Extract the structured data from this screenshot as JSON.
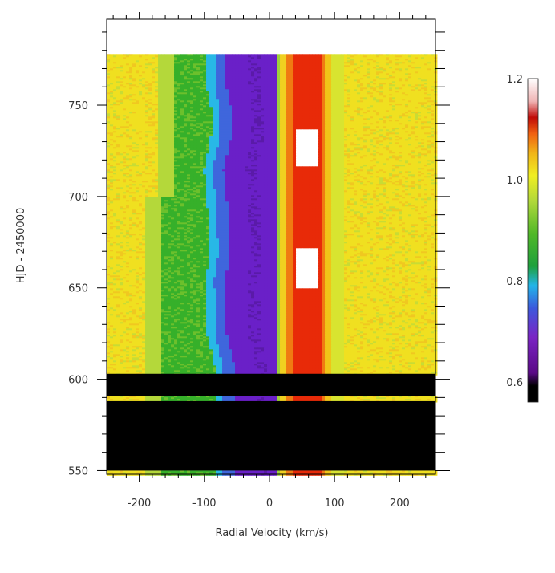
{
  "chart_data": {
    "type": "heatmap",
    "xlabel": "Radial Velocity (km/s)",
    "ylabel": "HJD - 2450000",
    "xlim": [
      -250,
      255
    ],
    "ylim": [
      548,
      797
    ],
    "xticks": [
      -200,
      -100,
      0,
      100,
      200
    ],
    "xtick_labels": [
      "-200",
      "-100",
      "0",
      "100",
      "200"
    ],
    "yticks": [
      550,
      600,
      650,
      700,
      750
    ],
    "ytick_labels": [
      "550",
      "600",
      "650",
      "700",
      "750"
    ],
    "colorbar": {
      "range": [
        0.56,
        1.2
      ],
      "ticks": [
        0.6,
        0.8,
        1.0,
        1.2
      ],
      "tick_labels": [
        "0.6",
        "0.8",
        "1.0",
        "1.2"
      ]
    },
    "no_data_gaps_hjd": [
      [
        778,
        794
      ],
      [
        603,
        591
      ],
      [
        588,
        550
      ]
    ],
    "data_strips_hjd": [
      [
        794,
        797
      ],
      [
        591,
        588
      ],
      [
        550,
        548
      ]
    ],
    "absorption_center_kms": [
      [
        778,
        -30
      ],
      [
        760,
        -30
      ],
      [
        745,
        -22
      ],
      [
        730,
        -25
      ],
      [
        715,
        -35
      ],
      [
        700,
        -30
      ],
      [
        685,
        -28
      ],
      [
        670,
        -25
      ],
      [
        655,
        -32
      ],
      [
        640,
        -30
      ],
      [
        625,
        -30
      ],
      [
        610,
        -20
      ],
      [
        604,
        -18
      ]
    ],
    "emission_peak_kms": 55,
    "saturated_emission_hjd": [
      [
        650,
        672
      ],
      [
        717,
        737
      ]
    ],
    "colors": {
      "no_data": "#000000",
      "continuum": "#f0e020",
      "wing": "#36b02a",
      "absorption_core": "#6a20c8",
      "emission": "#e82a08",
      "saturated": "#ffffff"
    }
  }
}
